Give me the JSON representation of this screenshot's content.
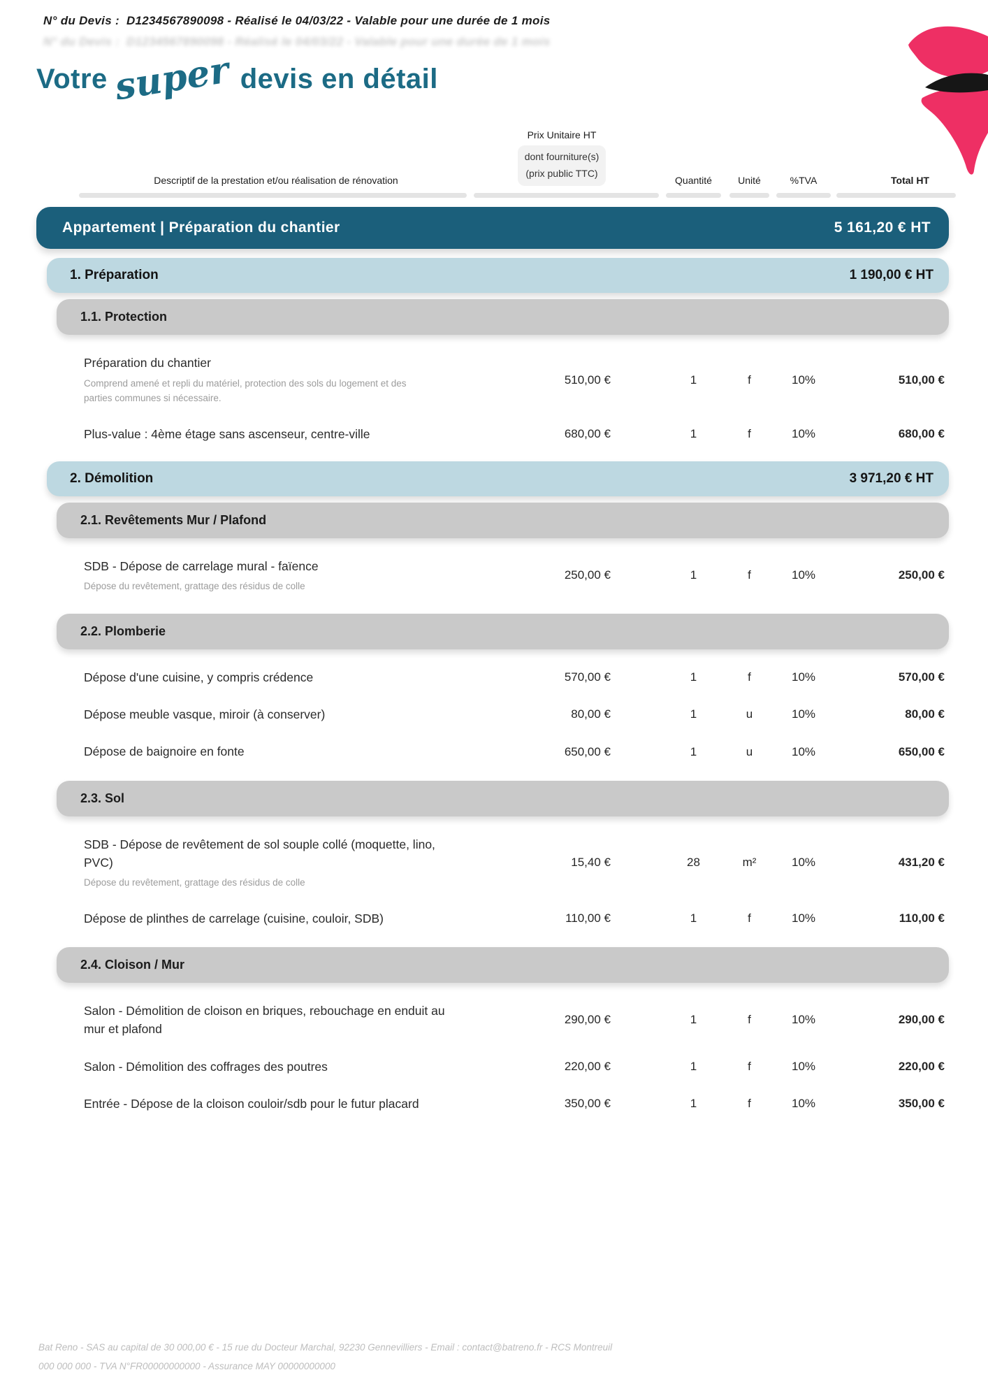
{
  "header_note": {
    "label": "N° du Devis :",
    "value": "D1234567890098 - Réalisé le 04/03/22 - Valable pour une durée de 1 mois"
  },
  "title": {
    "word1": "Votre",
    "script_word": "super",
    "rest": "devis en détail"
  },
  "logo": {
    "name": "bat-reno-logo",
    "pink": "#ee2f64",
    "black": "#161616"
  },
  "colors": {
    "accent_teal": "#1b5f7b",
    "title_teal": "#1c6b85",
    "section_blue": "#bdd8e1",
    "subsection_gray": "#c9c9c9",
    "header_pill_gray": "#f2f2f2",
    "underline_gray": "#e4e4e4"
  },
  "table": {
    "headers": {
      "description": "Descriptif de la prestation et/ou réalisation de rénovation",
      "unit_price_line1": "Prix Unitaire HT",
      "unit_price_line2": "dont fourniture(s)",
      "unit_price_line3": "(prix public TTC)",
      "quantity": "Quantité",
      "unit": "Unité",
      "vat": "%TVA",
      "total": "Total HT"
    }
  },
  "blocks": [
    {
      "type": "group",
      "label": "Appartement | Préparation du chantier",
      "total": "5 161,20 € HT"
    },
    {
      "type": "section",
      "label": "1. Préparation",
      "total": "1 190,00 € HT"
    },
    {
      "type": "subsection",
      "label": "1.1. Protection"
    },
    {
      "type": "row",
      "title": "Préparation du chantier",
      "description": "Comprend amené et repli du matériel, protection des sols du logement et des parties communes si nécessaire.",
      "unit_price": "510,00 €",
      "quantity": "1",
      "unit": "f",
      "tva": "10%",
      "total": "510,00 €"
    },
    {
      "type": "row",
      "title": "Plus-value : 4ème étage sans ascenseur, centre-ville",
      "unit_price": "680,00 €",
      "quantity": "1",
      "unit": "f",
      "tva": "10%",
      "total": "680,00 €"
    },
    {
      "type": "section",
      "label": "2. Démolition",
      "total": "3 971,20 € HT"
    },
    {
      "type": "subsection",
      "label": "2.1. Revêtements Mur / Plafond"
    },
    {
      "type": "row",
      "title": "SDB - Dépose de carrelage mural - faïence",
      "description": "Dépose du revêtement, grattage des résidus de colle",
      "unit_price": "250,00 €",
      "quantity": "1",
      "unit": "f",
      "tva": "10%",
      "total": "250,00 €"
    },
    {
      "type": "subsection",
      "label": "2.2. Plomberie"
    },
    {
      "type": "row",
      "title": "Dépose d'une cuisine, y compris crédence",
      "unit_price": "570,00 €",
      "quantity": "1",
      "unit": "f",
      "tva": "10%",
      "total": "570,00 €"
    },
    {
      "type": "row",
      "title": "Dépose meuble vasque, miroir (à conserver)",
      "unit_price": "80,00 €",
      "quantity": "1",
      "unit": "u",
      "tva": "10%",
      "total": "80,00 €"
    },
    {
      "type": "row",
      "title": "Dépose de baignoire en fonte",
      "unit_price": "650,00 €",
      "quantity": "1",
      "unit": "u",
      "tva": "10%",
      "total": "650,00 €"
    },
    {
      "type": "subsection",
      "label": "2.3. Sol"
    },
    {
      "type": "row",
      "title": "SDB - Dépose de revêtement de sol souple collé (moquette, lino, PVC)",
      "description": "Dépose du revêtement, grattage des résidus de colle",
      "unit_price": "15,40 €",
      "quantity": "28",
      "unit": "m²",
      "tva": "10%",
      "total": "431,20 €"
    },
    {
      "type": "row",
      "title": "Dépose de plinthes de carrelage (cuisine, couloir, SDB)",
      "unit_price": "110,00 €",
      "quantity": "1",
      "unit": "f",
      "tva": "10%",
      "total": "110,00 €"
    },
    {
      "type": "subsection",
      "label": "2.4. Cloison / Mur"
    },
    {
      "type": "row",
      "title": "Salon - Démolition de cloison en briques, rebouchage en enduit au mur et plafond",
      "unit_price": "290,00 €",
      "quantity": "1",
      "unit": "f",
      "tva": "10%",
      "total": "290,00 €"
    },
    {
      "type": "row",
      "title": "Salon - Démolition des coffrages des poutres",
      "unit_price": "220,00 €",
      "quantity": "1",
      "unit": "f",
      "tva": "10%",
      "total": "220,00 €"
    },
    {
      "type": "row",
      "title": "Entrée - Dépose de la cloison couloir/sdb pour le futur placard",
      "unit_price": "350,00 €",
      "quantity": "1",
      "unit": "f",
      "tva": "10%",
      "total": "350,00 €"
    }
  ],
  "footer": {
    "text": "Bat Reno - SAS au capital de 30 000,00 € - 15 rue du Docteur Marchal, 92230 Gennevilliers - Email : contact@batreno.fr - RCS Montreuil 000 000 000 - TVA N°FR00000000000 - Assurance MAY 00000000000"
  }
}
